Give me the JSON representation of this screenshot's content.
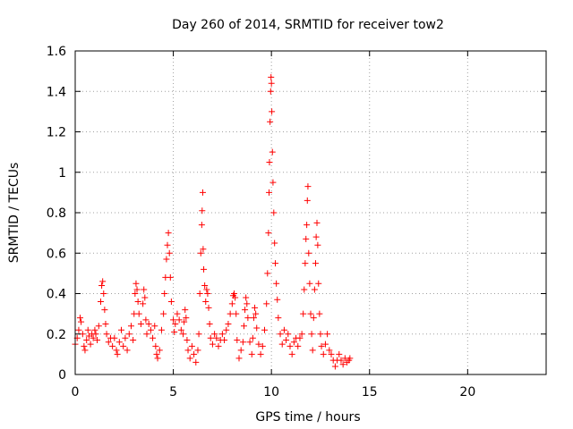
{
  "chart_data": {
    "type": "scatter",
    "title": "Day 260 of 2014, SRMTID for receiver tow2",
    "xlabel": "GPS time / hours",
    "ylabel": "SRMTID / TECUs",
    "xlim": [
      0,
      24
    ],
    "ylim": [
      0,
      1.6
    ],
    "grid": true,
    "marker": "+",
    "color": "#ff0000",
    "xticks": [
      {
        "value": 0,
        "label": "0"
      },
      {
        "value": 5,
        "label": "5"
      },
      {
        "value": 10,
        "label": "10"
      },
      {
        "value": 15,
        "label": "15"
      },
      {
        "value": 20,
        "label": "20"
      }
    ],
    "yticks": [
      {
        "value": 0,
        "label": "0"
      },
      {
        "value": 0.2,
        "label": "0.2"
      },
      {
        "value": 0.4,
        "label": "0.4"
      },
      {
        "value": 0.6,
        "label": "0.6"
      },
      {
        "value": 0.8,
        "label": "0.8"
      },
      {
        "value": 1.0,
        "label": "1"
      },
      {
        "value": 1.2,
        "label": "1.2"
      },
      {
        "value": 1.4,
        "label": "1.4"
      },
      {
        "value": 1.6,
        "label": "1.6"
      }
    ],
    "series": [
      {
        "name": "SRMTID",
        "points": [
          [
            0.0,
            0.15
          ],
          [
            0.1,
            0.18
          ],
          [
            0.18,
            0.22
          ],
          [
            0.25,
            0.28
          ],
          [
            0.3,
            0.26
          ],
          [
            0.38,
            0.2
          ],
          [
            0.45,
            0.14
          ],
          [
            0.5,
            0.12
          ],
          [
            0.58,
            0.17
          ],
          [
            0.65,
            0.22
          ],
          [
            0.7,
            0.19
          ],
          [
            0.78,
            0.15
          ],
          [
            0.85,
            0.2
          ],
          [
            0.92,
            0.18
          ],
          [
            1.0,
            0.22
          ],
          [
            1.05,
            0.2
          ],
          [
            1.12,
            0.17
          ],
          [
            1.2,
            0.24
          ],
          [
            1.3,
            0.36
          ],
          [
            1.35,
            0.44
          ],
          [
            1.4,
            0.46
          ],
          [
            1.45,
            0.4
          ],
          [
            1.5,
            0.32
          ],
          [
            1.55,
            0.25
          ],
          [
            1.6,
            0.2
          ],
          [
            1.7,
            0.16
          ],
          [
            1.8,
            0.18
          ],
          [
            1.9,
            0.14
          ],
          [
            2.0,
            0.18
          ],
          [
            2.1,
            0.12
          ],
          [
            2.15,
            0.1
          ],
          [
            2.25,
            0.16
          ],
          [
            2.35,
            0.22
          ],
          [
            2.45,
            0.14
          ],
          [
            2.55,
            0.18
          ],
          [
            2.65,
            0.12
          ],
          [
            2.75,
            0.2
          ],
          [
            2.85,
            0.24
          ],
          [
            2.95,
            0.17
          ],
          [
            3.0,
            0.3
          ],
          [
            3.05,
            0.4
          ],
          [
            3.1,
            0.45
          ],
          [
            3.15,
            0.42
          ],
          [
            3.2,
            0.36
          ],
          [
            3.25,
            0.3
          ],
          [
            3.35,
            0.25
          ],
          [
            3.45,
            0.35
          ],
          [
            3.5,
            0.42
          ],
          [
            3.55,
            0.38
          ],
          [
            3.6,
            0.27
          ],
          [
            3.65,
            0.2
          ],
          [
            3.75,
            0.25
          ],
          [
            3.85,
            0.22
          ],
          [
            3.95,
            0.18
          ],
          [
            4.05,
            0.24
          ],
          [
            4.1,
            0.14
          ],
          [
            4.15,
            0.1
          ],
          [
            4.2,
            0.08
          ],
          [
            4.3,
            0.12
          ],
          [
            4.4,
            0.22
          ],
          [
            4.5,
            0.3
          ],
          [
            4.55,
            0.4
          ],
          [
            4.6,
            0.48
          ],
          [
            4.65,
            0.57
          ],
          [
            4.7,
            0.64
          ],
          [
            4.75,
            0.7
          ],
          [
            4.8,
            0.6
          ],
          [
            4.85,
            0.48
          ],
          [
            4.9,
            0.36
          ],
          [
            5.0,
            0.27
          ],
          [
            5.05,
            0.21
          ],
          [
            5.1,
            0.25
          ],
          [
            5.2,
            0.3
          ],
          [
            5.3,
            0.27
          ],
          [
            5.4,
            0.22
          ],
          [
            5.5,
            0.2
          ],
          [
            5.55,
            0.26
          ],
          [
            5.6,
            0.32
          ],
          [
            5.65,
            0.28
          ],
          [
            5.7,
            0.17
          ],
          [
            5.75,
            0.12
          ],
          [
            5.85,
            0.08
          ],
          [
            5.95,
            0.14
          ],
          [
            6.05,
            0.1
          ],
          [
            6.15,
            0.06
          ],
          [
            6.25,
            0.12
          ],
          [
            6.3,
            0.2
          ],
          [
            6.35,
            0.4
          ],
          [
            6.4,
            0.6
          ],
          [
            6.45,
            0.74
          ],
          [
            6.47,
            0.81
          ],
          [
            6.5,
            0.9
          ],
          [
            6.52,
            0.62
          ],
          [
            6.55,
            0.52
          ],
          [
            6.6,
            0.44
          ],
          [
            6.65,
            0.36
          ],
          [
            6.7,
            0.42
          ],
          [
            6.75,
            0.4
          ],
          [
            6.8,
            0.33
          ],
          [
            6.85,
            0.25
          ],
          [
            6.9,
            0.18
          ],
          [
            7.0,
            0.15
          ],
          [
            7.1,
            0.2
          ],
          [
            7.2,
            0.18
          ],
          [
            7.3,
            0.14
          ],
          [
            7.4,
            0.17
          ],
          [
            7.5,
            0.2
          ],
          [
            7.6,
            0.17
          ],
          [
            7.7,
            0.22
          ],
          [
            7.8,
            0.25
          ],
          [
            7.9,
            0.3
          ],
          [
            8.0,
            0.35
          ],
          [
            8.05,
            0.39
          ],
          [
            8.1,
            0.4
          ],
          [
            8.15,
            0.38
          ],
          [
            8.2,
            0.3
          ],
          [
            8.25,
            0.17
          ],
          [
            8.35,
            0.08
          ],
          [
            8.45,
            0.12
          ],
          [
            8.55,
            0.16
          ],
          [
            8.6,
            0.24
          ],
          [
            8.65,
            0.32
          ],
          [
            8.7,
            0.38
          ],
          [
            8.75,
            0.35
          ],
          [
            8.8,
            0.28
          ],
          [
            8.9,
            0.16
          ],
          [
            9.0,
            0.1
          ],
          [
            9.05,
            0.18
          ],
          [
            9.1,
            0.28
          ],
          [
            9.15,
            0.33
          ],
          [
            9.2,
            0.3
          ],
          [
            9.25,
            0.23
          ],
          [
            9.35,
            0.15
          ],
          [
            9.45,
            0.1
          ],
          [
            9.55,
            0.14
          ],
          [
            9.65,
            0.22
          ],
          [
            9.75,
            0.35
          ],
          [
            9.8,
            0.5
          ],
          [
            9.85,
            0.7
          ],
          [
            9.88,
            0.9
          ],
          [
            9.9,
            1.05
          ],
          [
            9.93,
            1.25
          ],
          [
            9.96,
            1.4
          ],
          [
            9.98,
            1.47
          ],
          [
            10.0,
            1.44
          ],
          [
            10.02,
            1.3
          ],
          [
            10.05,
            1.1
          ],
          [
            10.08,
            0.95
          ],
          [
            10.12,
            0.8
          ],
          [
            10.16,
            0.65
          ],
          [
            10.2,
            0.55
          ],
          [
            10.25,
            0.45
          ],
          [
            10.3,
            0.37
          ],
          [
            10.35,
            0.28
          ],
          [
            10.45,
            0.2
          ],
          [
            10.55,
            0.15
          ],
          [
            10.65,
            0.22
          ],
          [
            10.75,
            0.17
          ],
          [
            10.85,
            0.2
          ],
          [
            10.95,
            0.14
          ],
          [
            11.05,
            0.1
          ],
          [
            11.15,
            0.16
          ],
          [
            11.25,
            0.18
          ],
          [
            11.35,
            0.14
          ],
          [
            11.45,
            0.18
          ],
          [
            11.55,
            0.2
          ],
          [
            11.62,
            0.3
          ],
          [
            11.67,
            0.42
          ],
          [
            11.72,
            0.55
          ],
          [
            11.76,
            0.67
          ],
          [
            11.8,
            0.74
          ],
          [
            11.83,
            0.86
          ],
          [
            11.86,
            0.93
          ],
          [
            11.9,
            0.6
          ],
          [
            11.95,
            0.45
          ],
          [
            12.0,
            0.3
          ],
          [
            12.05,
            0.2
          ],
          [
            12.1,
            0.12
          ],
          [
            12.15,
            0.28
          ],
          [
            12.2,
            0.42
          ],
          [
            12.25,
            0.55
          ],
          [
            12.28,
            0.68
          ],
          [
            12.32,
            0.75
          ],
          [
            12.36,
            0.64
          ],
          [
            12.4,
            0.45
          ],
          [
            12.45,
            0.3
          ],
          [
            12.5,
            0.2
          ],
          [
            12.55,
            0.14
          ],
          [
            12.65,
            0.1
          ],
          [
            12.75,
            0.15
          ],
          [
            12.85,
            0.2
          ],
          [
            12.95,
            0.12
          ],
          [
            13.05,
            0.1
          ],
          [
            13.15,
            0.07
          ],
          [
            13.25,
            0.04
          ],
          [
            13.35,
            0.07
          ],
          [
            13.45,
            0.1
          ],
          [
            13.55,
            0.07
          ],
          [
            13.65,
            0.05
          ],
          [
            13.75,
            0.08
          ],
          [
            13.85,
            0.06
          ],
          [
            13.95,
            0.07
          ],
          [
            14.0,
            0.08
          ]
        ]
      }
    ]
  }
}
